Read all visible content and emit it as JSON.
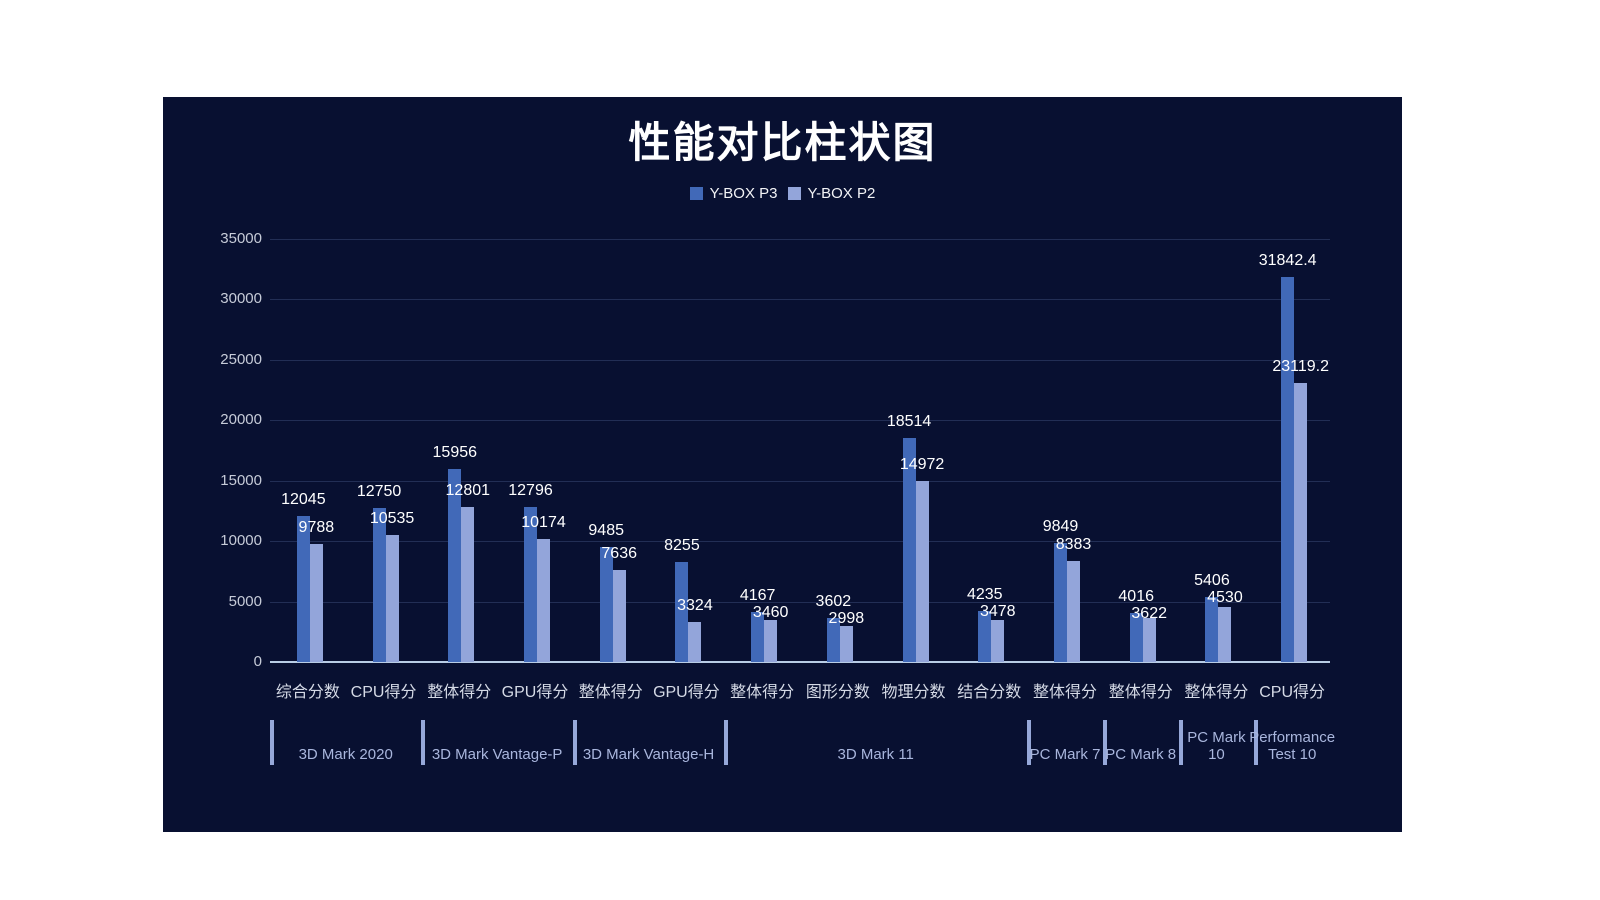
{
  "page": {
    "background": "#ffffff"
  },
  "panel": {
    "background": "#081031"
  },
  "chart_data": {
    "type": "bar",
    "title": "性能对比柱状图",
    "legend_position": "top",
    "grid": true,
    "categories": [
      "综合分数",
      "CPU得分",
      "整体得分",
      "GPU得分",
      "整体得分",
      "GPU得分",
      "整体得分",
      "图形分数",
      "物理分数",
      "结合分数",
      "整体得分",
      "整体得分",
      "整体得分",
      "CPU得分"
    ],
    "series": [
      {
        "name": "Y-BOX P3",
        "color": "#4169b8",
        "values": [
          12045,
          12750,
          15956,
          12796,
          9485,
          8255,
          4167,
          3602,
          18514,
          4235,
          9849,
          4016,
          5406,
          31842.4
        ]
      },
      {
        "name": "Y-BOX P2",
        "color": "#93a5da",
        "values": [
          9788,
          10535,
          12801,
          10174,
          7636,
          3324,
          3460,
          2998,
          14972,
          3478,
          8383,
          3622,
          4530,
          23119.2
        ]
      }
    ],
    "groups": [
      {
        "label": "3D Mark 2020",
        "span": 2
      },
      {
        "label": "3D Mark  Vantage-P",
        "span": 2
      },
      {
        "label": "3D Mark  Vantage-H",
        "span": 2
      },
      {
        "label": "3D Mark 11",
        "span": 4
      },
      {
        "label": "PC Mark 7",
        "span": 1
      },
      {
        "label": "PC Mark 8",
        "span": 1
      },
      {
        "label": "PC Mark 10",
        "span": 1
      },
      {
        "label": "Performance Test 10",
        "span": 1
      }
    ],
    "y_axis": {
      "min": 0,
      "max": 35000,
      "tick_interval": 5000,
      "ticks": [
        0,
        5000,
        10000,
        15000,
        20000,
        25000,
        30000,
        35000
      ]
    },
    "colors": {
      "background": "#081031",
      "gridline": "#222e55",
      "axis_line": "#b9cde6",
      "tick_text": "#c6cbd8",
      "category_text": "#d5dae6",
      "group_text": "#a9b6dd",
      "separator": "#96a8d9",
      "value_text": "#ffffff",
      "title_text": "#ffffff"
    }
  }
}
